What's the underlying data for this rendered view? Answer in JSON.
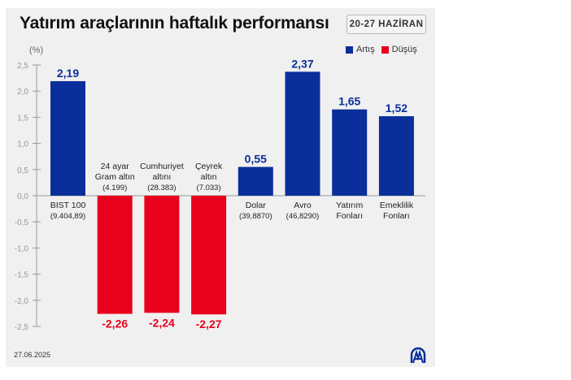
{
  "title": "Yatırım araçlarının haftalık performansı",
  "date_range": "20-27 HAZİRAN",
  "date": "27.06.2025",
  "logo": "AA",
  "colors": {
    "increase": "#0a2e9a",
    "decrease": "#e8001c",
    "background": "#f0f0f0"
  },
  "chart_data": {
    "type": "bar",
    "title": "Yatırım araçlarının haftalık performansı",
    "ylabel": "(%)",
    "ylim": [
      -2.5,
      2.5
    ],
    "yticks": [
      "2,5",
      "2,0",
      "1,5",
      "1,0",
      "0,5",
      "0,0",
      "-0,5",
      "-1,0",
      "-1,5",
      "-2,0",
      "-2,5"
    ],
    "ytick_values": [
      2.5,
      2.0,
      1.5,
      1.0,
      0.5,
      0.0,
      -0.5,
      -1.0,
      -1.5,
      -2.0,
      -2.5
    ],
    "legend": [
      {
        "label": "Artış",
        "color": "#0a2e9a"
      },
      {
        "label": "Düşüş",
        "color": "#e8001c"
      }
    ],
    "legend_position": "top-right",
    "grid": false,
    "categories": [
      [
        "BIST 100",
        "(9.404,89)"
      ],
      [
        "24 ayar",
        "Gram altın",
        "(4.199)"
      ],
      [
        "Cumhuriyet",
        "altını",
        "(28.383)"
      ],
      [
        "Çeyrek",
        "altın",
        "(7.033)"
      ],
      [
        "Dolar",
        "(39,8870)"
      ],
      [
        "Avro",
        "(46,8290)"
      ],
      [
        "Yatırım",
        "Fonları"
      ],
      [
        "Emeklilik",
        "Fonları"
      ]
    ],
    "values": [
      2.19,
      -2.26,
      -2.24,
      -2.27,
      0.55,
      2.37,
      1.65,
      1.52
    ],
    "value_labels": [
      "2,19",
      "-2,26",
      "-2,24",
      "-2,27",
      "0,55",
      "2,37",
      "1,65",
      "1,52"
    ]
  }
}
